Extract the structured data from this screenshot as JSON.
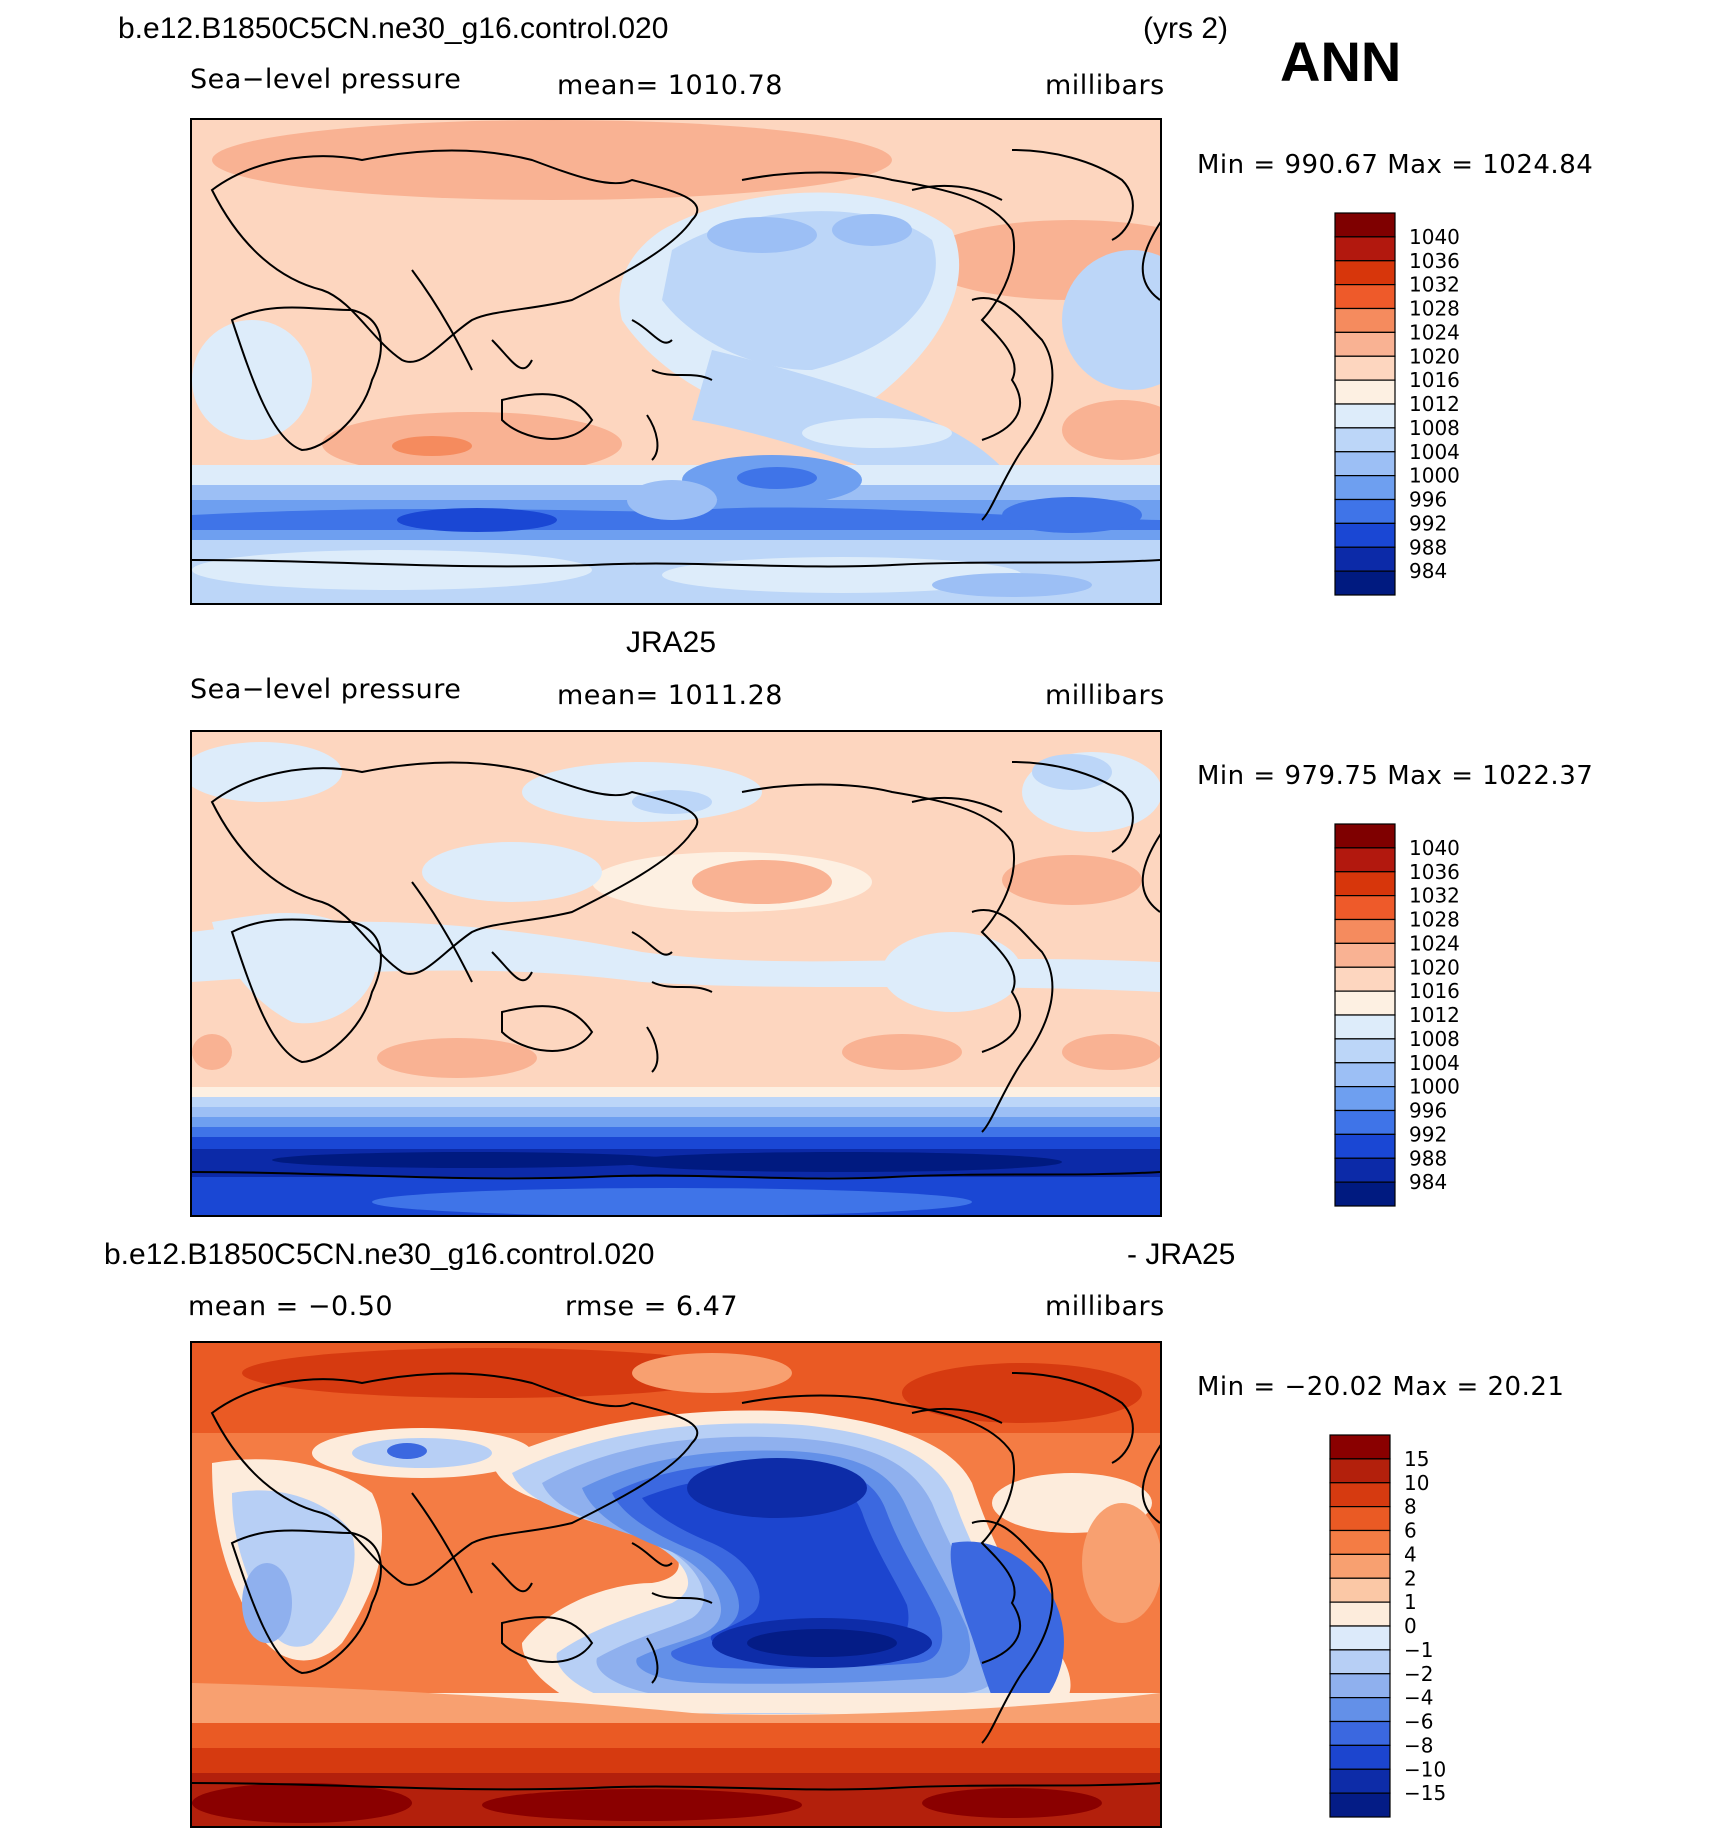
{
  "season": "ANN",
  "panels": [
    {
      "case_title": "b.e12.B1850C5CN.ne30_g16.control.020",
      "years": "(yrs 2)",
      "variable": "Sea−level pressure",
      "mean_text": "mean=  1010.78",
      "units": "millibars",
      "minmax_text": "Min  =  990.67  Max  =  1024.84"
    },
    {
      "case_title": "JRA25",
      "variable": "Sea−level pressure",
      "mean_text": "mean=  1011.28",
      "units": "millibars",
      "minmax_text": "Min  =  979.75  Max  =  1022.37"
    },
    {
      "case_title": "b.e12.B1850C5CN.ne30_g16.control.020",
      "case_title_suffix": "- JRA25",
      "mean_text": "mean  =    −0.50",
      "rmse_text": "rmse  =      6.47",
      "units": "millibars",
      "minmax_text": "Min  =  −20.02  Max  =    20.21"
    }
  ],
  "chart_data": [
    {
      "type": "heatmap",
      "title": "b.e12.B1850C5CN.ne30_g16.control.020 (yrs 2) — Sea-level pressure",
      "units": "millibars",
      "mean": 1010.78,
      "min": 990.67,
      "max": 1024.84,
      "colorbar": {
        "labels": [
          "1040",
          "1036",
          "1032",
          "1028",
          "1024",
          "1020",
          "1016",
          "1012",
          "1008",
          "1004",
          "1000",
          "996",
          "992",
          "988",
          "984"
        ],
        "colors": [
          "#7f0000",
          "#b2180e",
          "#d7360b",
          "#ee5a2a",
          "#f58b5e",
          "#f9b293",
          "#fdd6bf",
          "#fdf0e2",
          "#ddecfa",
          "#bcd6f8",
          "#9cbff5",
          "#6e9ff0",
          "#3f74e8",
          "#1a47d4",
          "#0c2aa8",
          "#001a80"
        ]
      }
    },
    {
      "type": "heatmap",
      "title": "JRA25 — Sea-level pressure",
      "units": "millibars",
      "mean": 1011.28,
      "min": 979.75,
      "max": 1022.37,
      "colorbar": {
        "labels": [
          "1040",
          "1036",
          "1032",
          "1028",
          "1024",
          "1020",
          "1016",
          "1012",
          "1008",
          "1004",
          "1000",
          "996",
          "992",
          "988",
          "984"
        ],
        "colors": [
          "#7f0000",
          "#b2180e",
          "#d7360b",
          "#ee5a2a",
          "#f58b5e",
          "#f9b293",
          "#fdd6bf",
          "#fdf0e2",
          "#ddecfa",
          "#bcd6f8",
          "#9cbff5",
          "#6e9ff0",
          "#3f74e8",
          "#1a47d4",
          "#0c2aa8",
          "#001a80"
        ]
      }
    },
    {
      "type": "heatmap",
      "title": "b.e12.B1850C5CN.ne30_g16.control.020 - JRA25",
      "units": "millibars",
      "mean": -0.5,
      "rmse": 6.47,
      "min": -20.02,
      "max": 20.21,
      "colorbar": {
        "labels": [
          "15",
          "10",
          "8",
          "6",
          "4",
          "2",
          "1",
          "0",
          "−1",
          "−2",
          "−4",
          "−6",
          "−8",
          "−10",
          "−15"
        ],
        "colors": [
          "#8a0000",
          "#b3200c",
          "#d63a10",
          "#ea5a24",
          "#f47c44",
          "#f8a070",
          "#fbc8a6",
          "#fdecdc",
          "#dceafa",
          "#b7cff5",
          "#8fb0ee",
          "#6390e8",
          "#3b68e0",
          "#1c45cf",
          "#0d2ca8",
          "#041c86"
        ]
      }
    }
  ]
}
